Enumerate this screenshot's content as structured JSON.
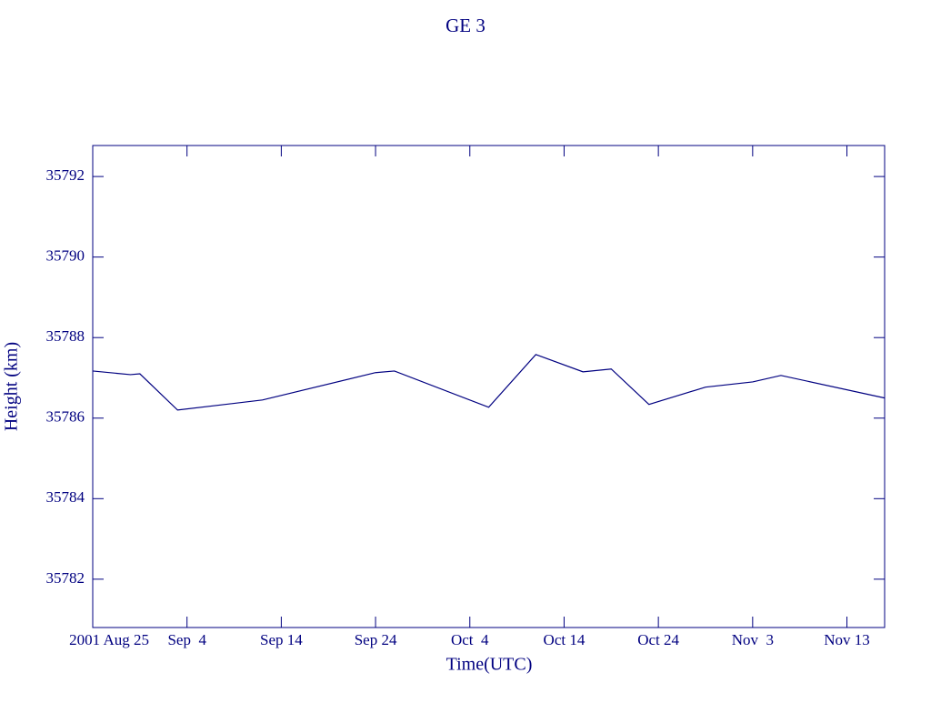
{
  "chart_data": {
    "type": "line",
    "title": "GE 3",
    "x_label": "Time(UTC)",
    "y_label": "Height (km)",
    "color": "#000080",
    "x": [
      "2001-08-25",
      "2001-08-29",
      "2001-08-30",
      "2001-09-03",
      "2001-09-12",
      "2001-09-24",
      "2001-09-26",
      "2001-10-06",
      "2001-10-11",
      "2001-10-16",
      "2001-10-19",
      "2001-10-23",
      "2001-10-29",
      "2001-11-03",
      "2001-11-06",
      "2001-11-17"
    ],
    "values": [
      35787.17,
      35787.08,
      35787.1,
      35786.2,
      35786.45,
      35787.13,
      35787.17,
      35786.27,
      35787.58,
      35787.15,
      35787.22,
      35786.34,
      35786.77,
      35786.9,
      35787.06,
      35786.5
    ],
    "xlim": [
      "2001-08-25",
      "2001-11-17"
    ],
    "xticks": [
      {
        "value": "2001-08-25",
        "label": "2001 Aug 25"
      },
      {
        "value": "2001-09-04",
        "label": "Sep  4"
      },
      {
        "value": "2001-09-14",
        "label": "Sep 14"
      },
      {
        "value": "2001-09-24",
        "label": "Sep 24"
      },
      {
        "value": "2001-10-04",
        "label": "Oct  4"
      },
      {
        "value": "2001-10-14",
        "label": "Oct 14"
      },
      {
        "value": "2001-10-24",
        "label": "Oct 24"
      },
      {
        "value": "2001-11-03",
        "label": "Nov  3"
      },
      {
        "value": "2001-11-13",
        "label": "Nov 13"
      }
    ],
    "ylim": [
      35780.8,
      35792.77
    ],
    "yticks": [
      35782,
      35784,
      35786,
      35788,
      35790,
      35792
    ]
  }
}
